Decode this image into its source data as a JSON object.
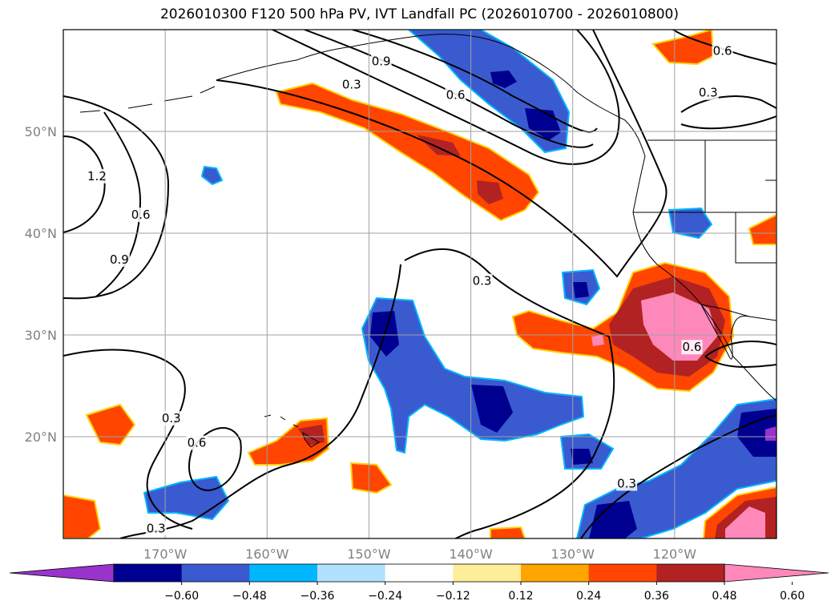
{
  "title": "2026010300 F120 500 hPa PV, IVT Landfall PC (2026010700 - 2026010800)",
  "map": {
    "lon_range": [
      -180,
      -110
    ],
    "lat_range": [
      10,
      60
    ],
    "lat_ticks": [
      {
        "lat": 50,
        "label": "50°N"
      },
      {
        "lat": 40,
        "label": "40°N"
      },
      {
        "lat": 30,
        "label": "30°N"
      },
      {
        "lat": 20,
        "label": "20°N"
      }
    ],
    "lon_ticks": [
      {
        "lon": -170,
        "label": "170°W"
      },
      {
        "lon": -160,
        "label": "160°W"
      },
      {
        "lon": -150,
        "label": "150°W"
      },
      {
        "lon": -140,
        "label": "140°W"
      },
      {
        "lon": -130,
        "label": "130°W"
      },
      {
        "lon": -120,
        "label": "120°W"
      }
    ],
    "grid": true,
    "contour_labels": [
      {
        "text": "0.9",
        "lon": -148.8,
        "lat": 56.9
      },
      {
        "text": "0.3",
        "lon": -151.7,
        "lat": 54.6
      },
      {
        "text": "0.6",
        "lon": -141.5,
        "lat": 53.6
      },
      {
        "text": "0.6",
        "lon": -115.3,
        "lat": 57.9
      },
      {
        "text": "0.3",
        "lon": -116.7,
        "lat": 53.8
      },
      {
        "text": "1.2",
        "lon": -176.7,
        "lat": 45.6
      },
      {
        "text": "0.6",
        "lon": -172.4,
        "lat": 41.8
      },
      {
        "text": "0.9",
        "lon": -174.5,
        "lat": 37.4
      },
      {
        "text": "0.3",
        "lon": -138.9,
        "lat": 35.3
      },
      {
        "text": "0.6",
        "lon": -118.3,
        "lat": 28.8
      },
      {
        "text": "0.3",
        "lon": -169.4,
        "lat": 21.8
      },
      {
        "text": "0.6",
        "lon": -166.9,
        "lat": 19.4
      },
      {
        "text": "0.3",
        "lon": -124.7,
        "lat": 15.4
      },
      {
        "text": "0.3",
        "lon": -170.9,
        "lat": 11.0
      }
    ]
  },
  "colorbar": {
    "colors": [
      "#9933cc",
      "#000090",
      "#3a5ad0",
      "#00b7ff",
      "#b0e2ff",
      "#ffffff",
      "#ffee99",
      "#ffa500",
      "#ff4500",
      "#b22222",
      "#ff88bb"
    ],
    "tick_labels": [
      "−0.60",
      "−0.48",
      "−0.36",
      "−0.24",
      "−0.12",
      "0.12",
      "0.24",
      "0.36",
      "0.48",
      "0.60"
    ],
    "extend": "both"
  }
}
